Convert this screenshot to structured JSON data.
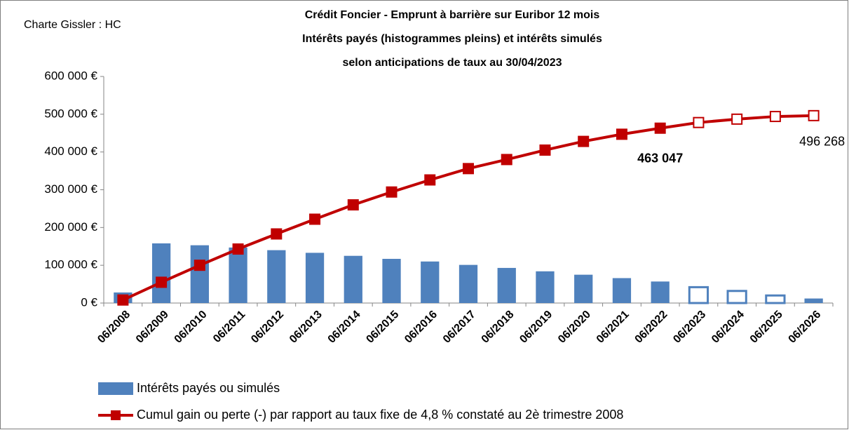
{
  "chart_data": {
    "type": "combo",
    "corner_note": "Charte Gissler : HC",
    "title": [
      "Crédit Foncier - Emprunt à barrière sur Euribor 12 mois",
      "Intérêts payés (histogrammes pleins) et intérêts simulés",
      "selon anticipations de taux au 30/04/2023"
    ],
    "categories": [
      "06/2008",
      "06/2009",
      "06/2010",
      "06/2011",
      "06/2012",
      "06/2013",
      "06/2014",
      "06/2015",
      "06/2016",
      "06/2017",
      "06/2018",
      "06/2019",
      "06/2020",
      "06/2021",
      "06/2022",
      "06/2023",
      "06/2024",
      "06/2025",
      "06/2026"
    ],
    "ylim": [
      0,
      600000
    ],
    "yticks": [
      {
        "value": 0,
        "label": "0 €"
      },
      {
        "value": 100000,
        "label": "100 000 €"
      },
      {
        "value": 200000,
        "label": "200 000 €"
      },
      {
        "value": 300000,
        "label": "300 000 €"
      },
      {
        "value": 400000,
        "label": "400 000 €"
      },
      {
        "value": 500000,
        "label": "500 000 €"
      },
      {
        "value": 600000,
        "label": "600 000 €"
      }
    ],
    "series": [
      {
        "name": "Intérêts payés ou simulés",
        "type": "bar",
        "color": "#4f81bd",
        "values": [
          28000,
          158000,
          153000,
          147000,
          140000,
          133000,
          125000,
          117000,
          110000,
          101000,
          93000,
          84000,
          75000,
          66000,
          57000,
          42000,
          32000,
          20000,
          12000
        ],
        "hollow_indices": [
          15,
          16,
          17
        ]
      },
      {
        "name": "Cumul gain ou perte (-) par rapport au taux fixe de 4,8 % constaté au 2è trimestre 2008",
        "type": "line",
        "color": "#c00000",
        "values": [
          8000,
          55000,
          100000,
          143000,
          183000,
          222000,
          260000,
          294000,
          326000,
          356000,
          380000,
          405000,
          428000,
          447000,
          463047,
          478000,
          487000,
          494000,
          496268
        ],
        "value_labels": [
          null,
          null,
          null,
          null,
          null,
          null,
          null,
          null,
          null,
          null,
          null,
          null,
          null,
          null,
          "463 047",
          null,
          null,
          null,
          "496 268"
        ],
        "hollow_indices": [
          15,
          16,
          17,
          18
        ]
      }
    ]
  }
}
